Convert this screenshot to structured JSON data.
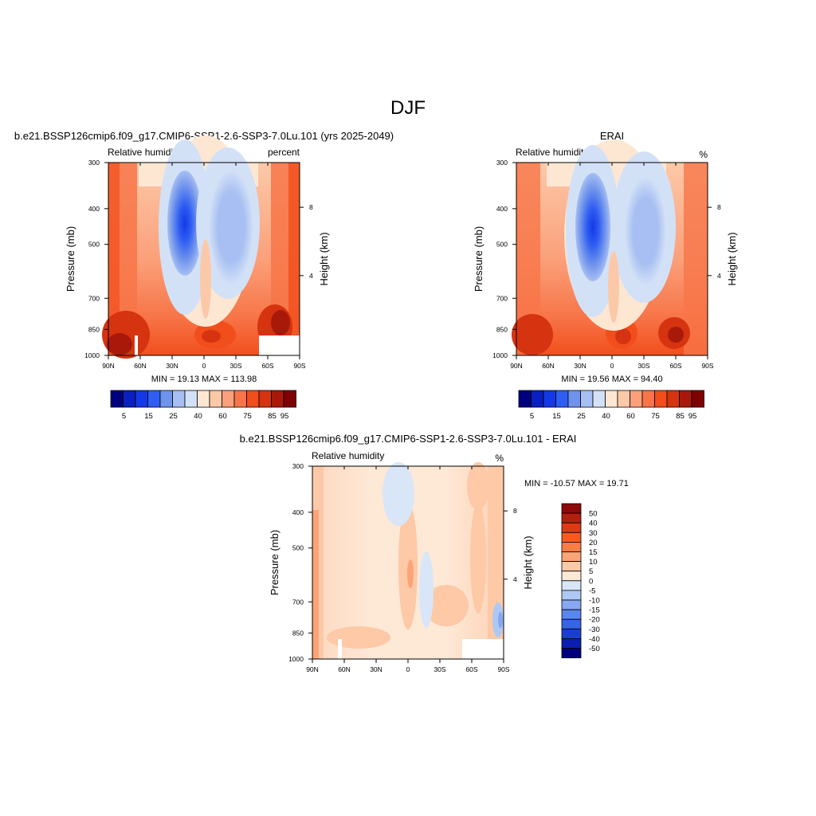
{
  "figure": {
    "title": "DJF"
  },
  "chart_data": [
    {
      "type": "heatmap",
      "panel_title": "b.e21.BSSP126cmip6.f09_g17.CMIP6-SSP1-2.6-SSP3-7.0Lu.101 (yrs 2025-2049)",
      "variable": "Relative humidity",
      "units": "percent",
      "ylabel": "Pressure (mb)",
      "ylabel_right": "Height (km)",
      "x_ticks": [
        "90N",
        "60N",
        "30N",
        "0",
        "30S",
        "60S",
        "90S"
      ],
      "y_ticks": [
        "300",
        "400",
        "500",
        "700",
        "850",
        "1000"
      ],
      "y_ticks_right": [
        "8",
        "4"
      ],
      "stats": "MIN =  19.13  MAX = 113.98",
      "colorbar_labels": [
        "5",
        "15",
        "25",
        "40",
        "60",
        "75",
        "85",
        "95"
      ],
      "colors": [
        "#00007f",
        "#0a1fbf",
        "#1438e6",
        "#2f5ef2",
        "#6f93ec",
        "#a7bff2",
        "#d3e1f7",
        "#fde7d3",
        "#fcc9a8",
        "#fba07a",
        "#f77548",
        "#f24e1c",
        "#d63310",
        "#a8190a",
        "#7f0000"
      ]
    },
    {
      "type": "heatmap",
      "panel_title": "ERAI",
      "variable": "Relative humidity",
      "units": "%",
      "ylabel": "Pressure (mb)",
      "ylabel_right": "Height (km)",
      "x_ticks": [
        "90N",
        "60N",
        "30N",
        "0",
        "30S",
        "60S",
        "90S"
      ],
      "y_ticks": [
        "300",
        "400",
        "500",
        "700",
        "850",
        "1000"
      ],
      "y_ticks_right": [
        "8",
        "4"
      ],
      "stats": "MIN =  19.56  MAX =  94.40",
      "colorbar_labels": [
        "5",
        "15",
        "25",
        "40",
        "60",
        "75",
        "85",
        "95"
      ]
    },
    {
      "type": "heatmap",
      "panel_title": "b.e21.BSSP126cmip6.f09_g17.CMIP6-SSP1-2.6-SSP3-7.0Lu.101 - ERAI",
      "variable": "Relative humidity",
      "units": "%",
      "ylabel": "Pressure (mb)",
      "ylabel_right": "Height (km)",
      "x_ticks": [
        "90N",
        "60N",
        "30N",
        "0",
        "30S",
        "60S",
        "90S"
      ],
      "y_ticks": [
        "300",
        "400",
        "500",
        "700",
        "850",
        "1000"
      ],
      "y_ticks_right": [
        "8",
        "4"
      ],
      "stats": "MIN = -10.57  MAX =  19.71",
      "colorbar_labels": [
        "50",
        "40",
        "30",
        "20",
        "15",
        "10",
        "5",
        "0",
        "-5",
        "-10",
        "-15",
        "-20",
        "-30",
        "-40",
        "-50"
      ],
      "colors": [
        "#8c0a0a",
        "#b5200e",
        "#dc3a12",
        "#f55a22",
        "#f97d45",
        "#fba478",
        "#fdc9a6",
        "#fee8d6",
        "#d8e6f8",
        "#aec8f5",
        "#86a8f0",
        "#5a85ec",
        "#3565e6",
        "#1a3fd0",
        "#0a1fb0",
        "#00007f"
      ]
    }
  ]
}
